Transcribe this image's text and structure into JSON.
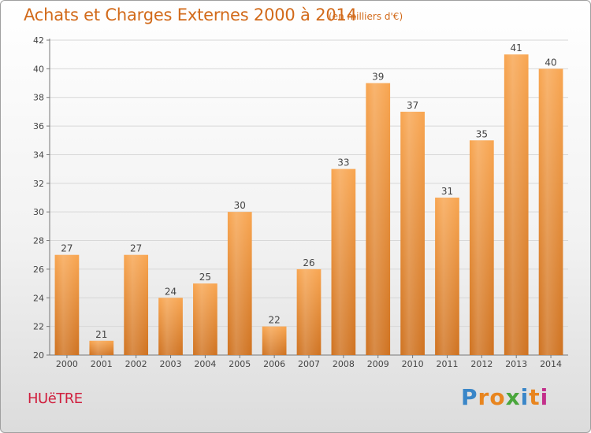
{
  "header": {
    "title": "Achats et Charges Externes 2000 à 2014",
    "subtitle": "(en milliers d'€)"
  },
  "footer": {
    "place": "HUëTRE",
    "logo": "Proxiti"
  },
  "colors": {
    "accent": "#d26a1a",
    "bar_top": "#f8a550",
    "bar_bottom": "#cf7220",
    "place": "#d01f3e",
    "logo_letters": [
      "#3a86c8",
      "#e8851f",
      "#e8851f",
      "#4aa63c",
      "#3a86c8",
      "#e8851f",
      "#c32f8b"
    ]
  },
  "chart_data": {
    "type": "bar",
    "title": "Achats et Charges Externes 2000 à 2014",
    "subtitle": "(en milliers d'€)",
    "categories": [
      "2000",
      "2001",
      "2002",
      "2003",
      "2004",
      "2005",
      "2006",
      "2007",
      "2008",
      "2009",
      "2010",
      "2011",
      "2012",
      "2013",
      "2014"
    ],
    "values": [
      27,
      21,
      27,
      24,
      25,
      30,
      22,
      26,
      33,
      39,
      37,
      31,
      35,
      41,
      40
    ],
    "ylim": [
      20,
      42
    ],
    "yticks": [
      20,
      22,
      24,
      26,
      28,
      30,
      32,
      34,
      36,
      38,
      40,
      42
    ],
    "xlabel": "",
    "ylabel": "",
    "grid": true
  }
}
